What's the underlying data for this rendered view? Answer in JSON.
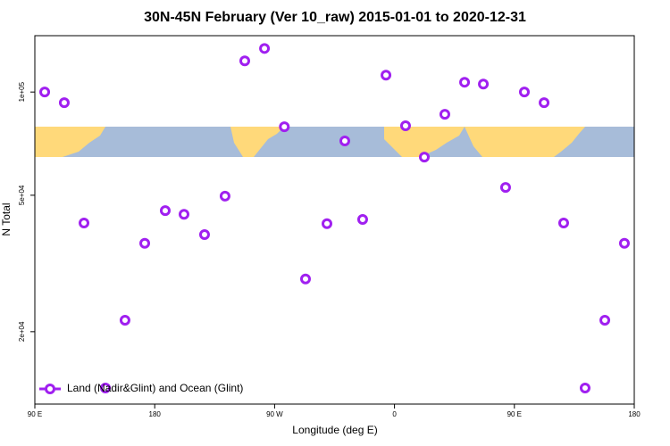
{
  "chart_data": {
    "type": "scatter",
    "title": "30N-45N February (Ver 10_raw)   2015-01-01 to 2020-12-31",
    "x_label": "Longitude (deg E)",
    "y_label": "N Total",
    "series": [
      {
        "name": "Land (Nadir&Glint) and Ocean (Glint)",
        "color": "#a020f0",
        "x": [
          97.4,
          112.1,
          126.9,
          143,
          157.7,
          172.5,
          187.9,
          202,
          217.4,
          232.8,
          247.6,
          262.4,
          277.3,
          293.2,
          309.3,
          322.7,
          336.1,
          353.6,
          368.3,
          382.4,
          397.8,
          412.6,
          426.7,
          443.4,
          457.5,
          472.3,
          487,
          503.1,
          517.9,
          532.6
        ],
        "values": [
          100000,
          93100,
          41500,
          13700,
          21600,
          36200,
          45100,
          44000,
          38400,
          49700,
          123300,
          134000,
          79200,
          28500,
          41300,
          72000,
          42500,
          112000,
          79700,
          64600,
          86100,
          106800,
          105500,
          52700,
          100000,
          93100,
          41500,
          13700,
          21600,
          36200
        ]
      }
    ],
    "xlim": [
      90,
      540
    ],
    "xticks": [
      {
        "value": 90,
        "label": "90 E"
      },
      {
        "value": 180,
        "label": "180"
      },
      {
        "value": 270,
        "label": "90 W"
      },
      {
        "value": 360,
        "label": "0"
      },
      {
        "value": 450,
        "label": "90 E"
      },
      {
        "value": 540,
        "label": "180"
      }
    ],
    "ylim": [
      12300,
      146000
    ],
    "log_y": true,
    "yticks": [
      {
        "value": 20000,
        "label": "2e+04"
      },
      {
        "value": 50000,
        "label": "5e+04"
      },
      {
        "value": 100000,
        "label": "1e+05"
      }
    ],
    "legend": "bottomleft"
  }
}
